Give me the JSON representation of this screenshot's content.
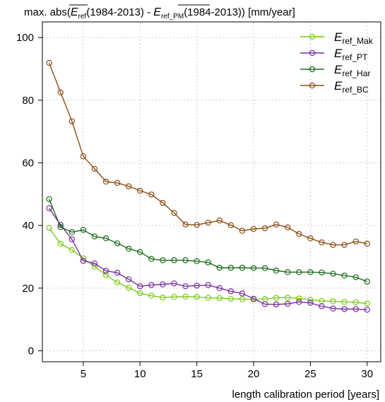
{
  "chart_data": {
    "type": "line",
    "title": {
      "prefix": "max. abs(",
      "term1_main": "E",
      "term1_sub": "ref",
      "term1_period": "(1984-2013)",
      "minus": " - ",
      "term2_main": "E",
      "term2_sub": "ref_PM",
      "term2_period": "(1984-2013)",
      "suffix": ") [mm/year]"
    },
    "xlabel": "length calibration period [years]",
    "ylabel": "",
    "xlim": [
      1.4,
      31.2
    ],
    "ylim": [
      -3.5,
      105
    ],
    "xticks": [
      5,
      10,
      15,
      20,
      25,
      30
    ],
    "yticks": [
      0,
      20,
      40,
      60,
      80,
      100
    ],
    "grid": true,
    "legend_position": "top-right",
    "x": [
      2,
      3,
      4,
      5,
      6,
      7,
      8,
      9,
      10,
      11,
      12,
      13,
      14,
      15,
      16,
      17,
      18,
      19,
      20,
      21,
      22,
      23,
      24,
      25,
      26,
      27,
      28,
      29,
      30
    ],
    "series": [
      {
        "name_main": "E",
        "name_sub": "ref_Mak",
        "color": "#7fcc1c",
        "values": [
          39.2,
          34.2,
          32.2,
          29.5,
          26.9,
          24.2,
          21.8,
          20.1,
          18.4,
          17.6,
          17.0,
          17.2,
          17.3,
          17.2,
          16.9,
          16.8,
          16.6,
          16.5,
          16.4,
          16.5,
          16.9,
          17.0,
          16.7,
          16.3,
          15.9,
          15.8,
          15.6,
          15.5,
          15.1
        ]
      },
      {
        "name_main": "E",
        "name_sub": "ref_PT",
        "color": "#7b2f9f",
        "values": [
          45.5,
          40.2,
          35.6,
          28.7,
          27.9,
          25.5,
          24.9,
          22.8,
          20.6,
          21.0,
          21.2,
          21.5,
          20.6,
          20.8,
          21.0,
          20.0,
          19.0,
          18.3,
          16.6,
          14.9,
          14.8,
          15.0,
          15.6,
          15.3,
          14.2,
          13.5,
          13.3,
          13.3,
          13.1
        ]
      },
      {
        "name_main": "E",
        "name_sub": "ref_Har",
        "color": "#1d6b1d",
        "values": [
          48.4,
          39.5,
          37.9,
          38.6,
          36.5,
          35.9,
          34.3,
          32.6,
          31.5,
          29.3,
          28.9,
          28.9,
          28.9,
          28.6,
          28.2,
          26.5,
          26.5,
          26.5,
          26.4,
          26.4,
          25.6,
          25.1,
          25.1,
          25.1,
          25.0,
          24.6,
          24.0,
          23.5,
          22.1
        ]
      },
      {
        "name_main": "E",
        "name_sub": "ref_BC",
        "color": "#8c4e12",
        "values": [
          91.9,
          82.5,
          73.3,
          62.1,
          58.1,
          54.0,
          53.6,
          52.5,
          51.1,
          49.9,
          47.2,
          44.0,
          40.3,
          40.2,
          40.9,
          41.6,
          40.1,
          38.3,
          38.9,
          39.1,
          40.3,
          39.4,
          37.3,
          35.9,
          34.6,
          33.8,
          33.8,
          34.9,
          34.2
        ]
      }
    ]
  }
}
